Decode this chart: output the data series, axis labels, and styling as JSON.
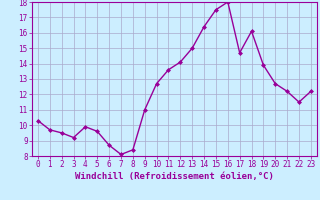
{
  "x": [
    0,
    1,
    2,
    3,
    4,
    5,
    6,
    7,
    8,
    9,
    10,
    11,
    12,
    13,
    14,
    15,
    16,
    17,
    18,
    19,
    20,
    21,
    22,
    23
  ],
  "y": [
    10.3,
    9.7,
    9.5,
    9.2,
    9.9,
    9.6,
    8.7,
    8.1,
    8.4,
    11.0,
    12.7,
    13.6,
    14.1,
    15.0,
    16.4,
    17.5,
    18.0,
    14.7,
    16.1,
    13.9,
    12.7,
    12.2,
    11.5,
    12.2
  ],
  "line_color": "#990099",
  "marker": "D",
  "marker_size": 2.0,
  "line_width": 1.0,
  "xlim": [
    -0.5,
    23.5
  ],
  "ylim": [
    8,
    18
  ],
  "yticks": [
    8,
    9,
    10,
    11,
    12,
    13,
    14,
    15,
    16,
    17,
    18
  ],
  "xticks": [
    0,
    1,
    2,
    3,
    4,
    5,
    6,
    7,
    8,
    9,
    10,
    11,
    12,
    13,
    14,
    15,
    16,
    17,
    18,
    19,
    20,
    21,
    22,
    23
  ],
  "xlabel": "Windchill (Refroidissement éolien,°C)",
  "bg_color": "#cceeff",
  "grid_color": "#aaaacc",
  "tick_color": "#990099",
  "label_color": "#990099",
  "font_size_tick": 5.5,
  "font_size_label": 6.5
}
